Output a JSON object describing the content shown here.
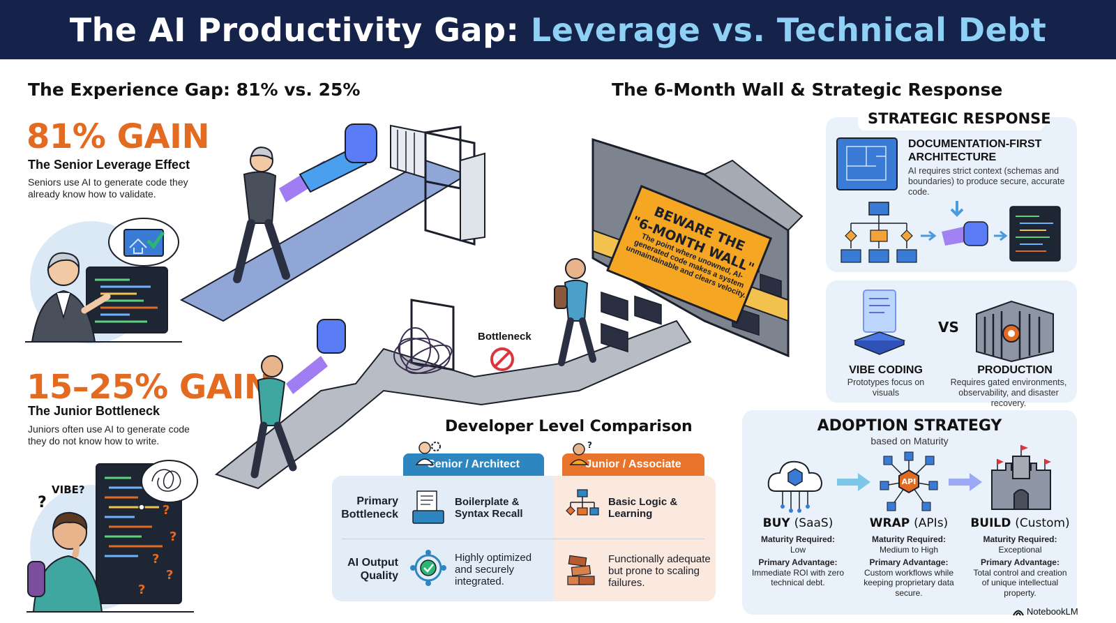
{
  "title": {
    "part1": "The AI Productivity Gap: ",
    "part2": "Leverage vs. Technical Debt"
  },
  "left": {
    "section_title": "The Experience Gap: 81% vs. 25%",
    "senior": {
      "gain": "81% GAIN",
      "heading": "The Senior Leverage Effect",
      "text": "Seniors use AI to generate code they already know how to validate."
    },
    "junior": {
      "gain": "15–25% GAIN",
      "heading": "The Junior Bottleneck",
      "text": "Juniors often use AI to generate code they do not know how to write.",
      "thought_label": "VIBE?",
      "question_mark": "?"
    }
  },
  "middle": {
    "bottleneck_label": "Bottleneck",
    "wall_sign": {
      "title_line1": "BEWARE THE",
      "title_line2": "\"6-MONTH WALL\"",
      "text": "The point where unowned, AI-generated code makes a system unmaintainable and clears velocity."
    }
  },
  "comparison": {
    "title": "Developer Level Comparison",
    "tab_senior": "Senior / Architect",
    "tab_junior": "Junior / Associate",
    "rows": [
      {
        "label": "Primary Bottleneck",
        "senior": "Boilerplate & Syntax Recall",
        "junior": "Basic Logic & Learning"
      },
      {
        "label": "AI Output Quality",
        "senior": "Highly optimized and securely integrated.",
        "junior": "Functionally adequate but prone to scaling failures."
      }
    ]
  },
  "right": {
    "section_title": "The 6-Month Wall & Strategic Response",
    "strategic": {
      "title": "STRATEGIC RESPONSE",
      "heading": "DOCUMENTATION-FIRST ARCHITECTURE",
      "text": "AI requires strict context (schemas and boundaries) to produce secure, accurate code."
    },
    "vibe": {
      "label": "VIBE CODING",
      "text": "Prototypes focus on visuals"
    },
    "vs": "VS",
    "production": {
      "label": "PRODUCTION",
      "text": "Requires gated environments, observability, and disaster recovery."
    },
    "adoption": {
      "title": "ADOPTION STRATEGY",
      "subtitle": "based on Maturity",
      "api_badge": "API",
      "strategies": [
        {
          "name": "BUY",
          "paren": "(SaaS)",
          "maturity_label": "Maturity Required:",
          "maturity": "Low",
          "adv_label": "Primary Advantage:",
          "advantage": "Immediate ROI with zero technical debt."
        },
        {
          "name": "WRAP",
          "paren": "(APIs)",
          "maturity_label": "Maturity Required:",
          "maturity": "Medium to High",
          "adv_label": "Primary Advantage:",
          "advantage": "Custom workflows while keeping proprietary data secure."
        },
        {
          "name": "BUILD",
          "paren": "(Custom)",
          "maturity_label": "Maturity Required:",
          "maturity": "Exceptional",
          "adv_label": "Primary Advantage:",
          "advantage": "Total control and creation of unique intellectual property."
        }
      ]
    }
  },
  "watermark": "NotebookLM",
  "colors": {
    "navy": "#15234a",
    "accent_blue": "#8fd0f5",
    "orange": "#e36a21",
    "senior_tab": "#2e86c1",
    "junior_tab": "#e8732a"
  }
}
